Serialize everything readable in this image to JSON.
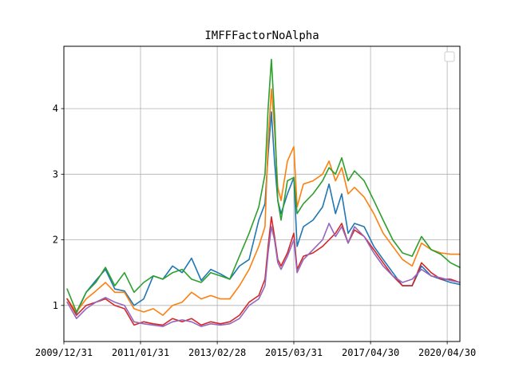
{
  "chart_data": {
    "type": "line",
    "title": "IMFFFactorNoAlpha",
    "xlabel": "",
    "ylabel": "",
    "grid": true,
    "legend": "top-right",
    "xlim": [
      "2009-12-31",
      "2020-04-30"
    ],
    "ylim": [
      0.45,
      4.95
    ],
    "x_tick_labels": [
      "2009/12/31",
      "2011/01/31",
      "2013/02/28",
      "2015/03/31",
      "2017/04/30",
      "2020/04/30"
    ],
    "x_ticks": [
      "2009-12-31",
      "2011-12-31",
      "2013-12-31",
      "2015-12-31",
      "2017-12-31",
      "2019-12-31"
    ],
    "y_ticks": [
      1,
      2,
      3,
      4
    ],
    "colors": [
      "#1f77b4",
      "#ff7f0e",
      "#2ca02c",
      "#d62728",
      "#9467bd"
    ],
    "series": [
      {
        "color": "#1f77b4",
        "points": [
          [
            "2010-01-31",
            1.1
          ],
          [
            "2010-04-30",
            0.88
          ],
          [
            "2010-07-31",
            1.2
          ],
          [
            "2010-10-31",
            1.38
          ],
          [
            "2011-01-31",
            1.55
          ],
          [
            "2011-04-30",
            1.25
          ],
          [
            "2011-07-31",
            1.22
          ],
          [
            "2011-10-31",
            1.0
          ],
          [
            "2012-01-31",
            1.1
          ],
          [
            "2012-04-30",
            1.45
          ],
          [
            "2012-07-31",
            1.4
          ],
          [
            "2012-10-31",
            1.6
          ],
          [
            "2013-01-31",
            1.5
          ],
          [
            "2013-04-30",
            1.72
          ],
          [
            "2013-07-31",
            1.38
          ],
          [
            "2013-10-31",
            1.55
          ],
          [
            "2014-01-31",
            1.48
          ],
          [
            "2014-04-30",
            1.4
          ],
          [
            "2014-07-31",
            1.6
          ],
          [
            "2014-10-31",
            1.7
          ],
          [
            "2015-01-31",
            2.3
          ],
          [
            "2015-03-31",
            2.55
          ],
          [
            "2015-04-30",
            3.3
          ],
          [
            "2015-05-31",
            3.95
          ],
          [
            "2015-06-30",
            3.2
          ],
          [
            "2015-07-31",
            2.6
          ],
          [
            "2015-08-31",
            2.4
          ],
          [
            "2015-10-31",
            2.7
          ],
          [
            "2015-12-31",
            2.95
          ],
          [
            "2016-01-31",
            1.9
          ],
          [
            "2016-03-31",
            2.2
          ],
          [
            "2016-06-30",
            2.3
          ],
          [
            "2016-09-30",
            2.5
          ],
          [
            "2016-11-30",
            2.85
          ],
          [
            "2017-01-31",
            2.4
          ],
          [
            "2017-03-31",
            2.7
          ],
          [
            "2017-05-31",
            2.1
          ],
          [
            "2017-07-31",
            2.25
          ],
          [
            "2017-10-31",
            2.2
          ],
          [
            "2018-01-31",
            1.9
          ],
          [
            "2018-04-30",
            1.7
          ],
          [
            "2018-07-31",
            1.5
          ],
          [
            "2018-10-31",
            1.3
          ],
          [
            "2019-01-31",
            1.3
          ],
          [
            "2019-04-30",
            1.6
          ],
          [
            "2019-07-31",
            1.45
          ],
          [
            "2019-10-31",
            1.4
          ],
          [
            "2020-01-31",
            1.35
          ],
          [
            "2020-04-30",
            1.32
          ]
        ]
      },
      {
        "color": "#ff7f0e",
        "points": [
          [
            "2010-01-31",
            1.1
          ],
          [
            "2010-04-30",
            0.9
          ],
          [
            "2010-07-31",
            1.1
          ],
          [
            "2010-10-31",
            1.22
          ],
          [
            "2011-01-31",
            1.35
          ],
          [
            "2011-04-30",
            1.2
          ],
          [
            "2011-07-31",
            1.2
          ],
          [
            "2011-10-31",
            0.95
          ],
          [
            "2012-01-31",
            0.9
          ],
          [
            "2012-04-30",
            0.95
          ],
          [
            "2012-07-31",
            0.85
          ],
          [
            "2012-10-31",
            1.0
          ],
          [
            "2013-01-31",
            1.05
          ],
          [
            "2013-04-30",
            1.2
          ],
          [
            "2013-07-31",
            1.1
          ],
          [
            "2013-10-31",
            1.15
          ],
          [
            "2014-01-31",
            1.1
          ],
          [
            "2014-04-30",
            1.1
          ],
          [
            "2014-07-31",
            1.3
          ],
          [
            "2014-10-31",
            1.55
          ],
          [
            "2015-01-31",
            1.9
          ],
          [
            "2015-03-31",
            2.2
          ],
          [
            "2015-04-30",
            3.5
          ],
          [
            "2015-05-31",
            4.3
          ],
          [
            "2015-06-30",
            3.7
          ],
          [
            "2015-07-31",
            2.8
          ],
          [
            "2015-08-31",
            2.6
          ],
          [
            "2015-10-31",
            3.2
          ],
          [
            "2015-12-31",
            3.42
          ],
          [
            "2016-01-31",
            2.5
          ],
          [
            "2016-03-31",
            2.85
          ],
          [
            "2016-06-30",
            2.9
          ],
          [
            "2016-09-30",
            3.0
          ],
          [
            "2016-11-30",
            3.2
          ],
          [
            "2017-01-31",
            2.9
          ],
          [
            "2017-03-31",
            3.1
          ],
          [
            "2017-05-31",
            2.7
          ],
          [
            "2017-07-31",
            2.8
          ],
          [
            "2017-10-31",
            2.65
          ],
          [
            "2018-01-31",
            2.4
          ],
          [
            "2018-04-30",
            2.1
          ],
          [
            "2018-07-31",
            1.9
          ],
          [
            "2018-10-31",
            1.7
          ],
          [
            "2019-01-31",
            1.6
          ],
          [
            "2019-04-30",
            1.95
          ],
          [
            "2019-07-31",
            1.85
          ],
          [
            "2019-10-31",
            1.8
          ],
          [
            "2020-01-31",
            1.78
          ],
          [
            "2020-04-30",
            1.78
          ]
        ]
      },
      {
        "color": "#2ca02c",
        "points": [
          [
            "2010-01-31",
            1.25
          ],
          [
            "2010-04-30",
            0.9
          ],
          [
            "2010-07-31",
            1.2
          ],
          [
            "2010-10-31",
            1.35
          ],
          [
            "2011-01-31",
            1.58
          ],
          [
            "2011-04-30",
            1.3
          ],
          [
            "2011-07-31",
            1.5
          ],
          [
            "2011-10-31",
            1.2
          ],
          [
            "2012-01-31",
            1.35
          ],
          [
            "2012-04-30",
            1.45
          ],
          [
            "2012-07-31",
            1.4
          ],
          [
            "2012-10-31",
            1.5
          ],
          [
            "2013-01-31",
            1.55
          ],
          [
            "2013-04-30",
            1.4
          ],
          [
            "2013-07-31",
            1.35
          ],
          [
            "2013-10-31",
            1.5
          ],
          [
            "2014-01-31",
            1.45
          ],
          [
            "2014-04-30",
            1.4
          ],
          [
            "2014-07-31",
            1.75
          ],
          [
            "2014-10-31",
            2.1
          ],
          [
            "2015-01-31",
            2.5
          ],
          [
            "2015-03-31",
            3.0
          ],
          [
            "2015-04-30",
            4.0
          ],
          [
            "2015-05-31",
            4.75
          ],
          [
            "2015-06-30",
            3.9
          ],
          [
            "2015-07-31",
            2.6
          ],
          [
            "2015-08-31",
            2.3
          ],
          [
            "2015-10-31",
            2.9
          ],
          [
            "2015-12-31",
            2.95
          ],
          [
            "2016-01-31",
            2.4
          ],
          [
            "2016-03-31",
            2.55
          ],
          [
            "2016-06-30",
            2.7
          ],
          [
            "2016-09-30",
            2.9
          ],
          [
            "2016-11-30",
            3.1
          ],
          [
            "2017-01-31",
            3.0
          ],
          [
            "2017-03-31",
            3.25
          ],
          [
            "2017-05-31",
            2.9
          ],
          [
            "2017-07-31",
            3.05
          ],
          [
            "2017-10-31",
            2.9
          ],
          [
            "2018-01-31",
            2.6
          ],
          [
            "2018-04-30",
            2.3
          ],
          [
            "2018-07-31",
            2.0
          ],
          [
            "2018-10-31",
            1.8
          ],
          [
            "2019-01-31",
            1.75
          ],
          [
            "2019-04-30",
            2.05
          ],
          [
            "2019-07-31",
            1.85
          ],
          [
            "2019-10-31",
            1.78
          ],
          [
            "2020-01-31",
            1.65
          ],
          [
            "2020-04-30",
            1.58
          ]
        ]
      },
      {
        "color": "#d62728",
        "points": [
          [
            "2010-01-31",
            1.1
          ],
          [
            "2010-04-30",
            0.85
          ],
          [
            "2010-07-31",
            1.0
          ],
          [
            "2010-10-31",
            1.05
          ],
          [
            "2011-01-31",
            1.1
          ],
          [
            "2011-04-30",
            1.0
          ],
          [
            "2011-07-31",
            0.95
          ],
          [
            "2011-10-31",
            0.7
          ],
          [
            "2012-01-31",
            0.75
          ],
          [
            "2012-04-30",
            0.72
          ],
          [
            "2012-07-31",
            0.7
          ],
          [
            "2012-10-31",
            0.8
          ],
          [
            "2013-01-31",
            0.75
          ],
          [
            "2013-04-30",
            0.8
          ],
          [
            "2013-07-31",
            0.7
          ],
          [
            "2013-10-31",
            0.75
          ],
          [
            "2014-01-31",
            0.72
          ],
          [
            "2014-04-30",
            0.75
          ],
          [
            "2014-07-31",
            0.85
          ],
          [
            "2014-10-31",
            1.05
          ],
          [
            "2015-01-31",
            1.15
          ],
          [
            "2015-03-31",
            1.4
          ],
          [
            "2015-04-30",
            1.9
          ],
          [
            "2015-05-31",
            2.35
          ],
          [
            "2015-06-30",
            2.05
          ],
          [
            "2015-07-31",
            1.7
          ],
          [
            "2015-08-31",
            1.6
          ],
          [
            "2015-10-31",
            1.8
          ],
          [
            "2015-12-31",
            2.1
          ],
          [
            "2016-01-31",
            1.55
          ],
          [
            "2016-03-31",
            1.75
          ],
          [
            "2016-06-30",
            1.8
          ],
          [
            "2016-09-30",
            1.9
          ],
          [
            "2016-11-30",
            2.0
          ],
          [
            "2017-01-31",
            2.1
          ],
          [
            "2017-03-31",
            2.25
          ],
          [
            "2017-05-31",
            1.95
          ],
          [
            "2017-07-31",
            2.15
          ],
          [
            "2017-10-31",
            2.05
          ],
          [
            "2018-01-31",
            1.85
          ],
          [
            "2018-04-30",
            1.65
          ],
          [
            "2018-07-31",
            1.45
          ],
          [
            "2018-10-31",
            1.3
          ],
          [
            "2019-01-31",
            1.3
          ],
          [
            "2019-04-30",
            1.65
          ],
          [
            "2019-07-31",
            1.5
          ],
          [
            "2019-10-31",
            1.4
          ],
          [
            "2020-01-31",
            1.4
          ],
          [
            "2020-04-30",
            1.35
          ]
        ]
      },
      {
        "color": "#9467bd",
        "points": [
          [
            "2010-01-31",
            1.05
          ],
          [
            "2010-04-30",
            0.8
          ],
          [
            "2010-07-31",
            0.95
          ],
          [
            "2010-10-31",
            1.05
          ],
          [
            "2011-01-31",
            1.12
          ],
          [
            "2011-04-30",
            1.05
          ],
          [
            "2011-07-31",
            1.0
          ],
          [
            "2011-10-31",
            0.75
          ],
          [
            "2012-01-31",
            0.72
          ],
          [
            "2012-04-30",
            0.7
          ],
          [
            "2012-07-31",
            0.68
          ],
          [
            "2012-10-31",
            0.75
          ],
          [
            "2013-01-31",
            0.78
          ],
          [
            "2013-04-30",
            0.75
          ],
          [
            "2013-07-31",
            0.68
          ],
          [
            "2013-10-31",
            0.72
          ],
          [
            "2014-01-31",
            0.7
          ],
          [
            "2014-04-30",
            0.72
          ],
          [
            "2014-07-31",
            0.8
          ],
          [
            "2014-10-31",
            1.0
          ],
          [
            "2015-01-31",
            1.1
          ],
          [
            "2015-03-31",
            1.3
          ],
          [
            "2015-04-30",
            1.8
          ],
          [
            "2015-05-31",
            2.2
          ],
          [
            "2015-06-30",
            2.0
          ],
          [
            "2015-07-31",
            1.65
          ],
          [
            "2015-08-31",
            1.55
          ],
          [
            "2015-10-31",
            1.75
          ],
          [
            "2015-12-31",
            2.0
          ],
          [
            "2016-01-31",
            1.5
          ],
          [
            "2016-03-31",
            1.7
          ],
          [
            "2016-06-30",
            1.85
          ],
          [
            "2016-09-30",
            2.0
          ],
          [
            "2016-11-30",
            2.25
          ],
          [
            "2017-01-31",
            2.05
          ],
          [
            "2017-03-31",
            2.2
          ],
          [
            "2017-05-31",
            1.95
          ],
          [
            "2017-07-31",
            2.2
          ],
          [
            "2017-10-31",
            2.05
          ],
          [
            "2018-01-31",
            1.8
          ],
          [
            "2018-04-30",
            1.6
          ],
          [
            "2018-07-31",
            1.45
          ],
          [
            "2018-10-31",
            1.35
          ],
          [
            "2019-01-31",
            1.4
          ],
          [
            "2019-04-30",
            1.55
          ],
          [
            "2019-07-31",
            1.45
          ],
          [
            "2019-10-31",
            1.42
          ],
          [
            "2020-01-31",
            1.38
          ],
          [
            "2020-04-30",
            1.35
          ]
        ]
      }
    ]
  }
}
